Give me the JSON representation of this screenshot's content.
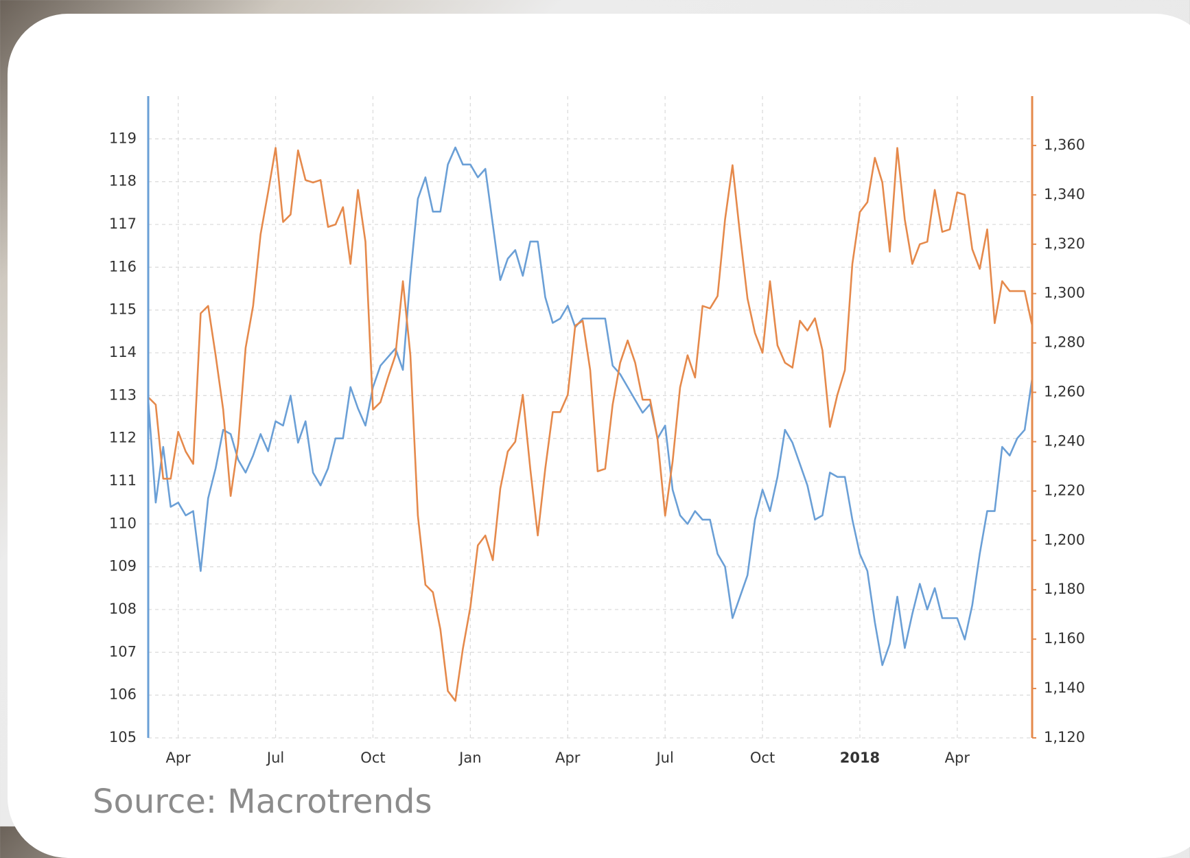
{
  "chart_data": {
    "type": "line",
    "categories": [
      null,
      null,
      null,
      null,
      "Apr",
      null,
      null,
      null,
      null,
      null,
      null,
      null,
      null,
      null,
      null,
      null,
      null,
      "Jul",
      null,
      null,
      null,
      null,
      null,
      null,
      null,
      null,
      null,
      null,
      null,
      null,
      "Oct",
      null,
      null,
      null,
      null,
      null,
      null,
      null,
      null,
      null,
      null,
      null,
      null,
      "Jan",
      null,
      null,
      null,
      null,
      null,
      null,
      null,
      null,
      null,
      null,
      null,
      null,
      "Apr",
      null,
      null,
      null,
      null,
      null,
      null,
      null,
      null,
      null,
      null,
      null,
      null,
      "Jul",
      null,
      null,
      null,
      null,
      null,
      null,
      null,
      null,
      null,
      null,
      null,
      null,
      "Oct",
      null,
      null,
      null,
      null,
      null,
      null,
      null,
      null,
      null,
      null,
      null,
      null,
      "2018",
      null,
      null,
      null,
      null,
      null,
      null,
      null,
      null,
      null,
      null,
      null,
      null,
      "Apr",
      null,
      null,
      null,
      null,
      null,
      null,
      null,
      null,
      null,
      null
    ],
    "series": [
      {
        "color": "#6a9fd6",
        "axis": "y",
        "values": [
          112.9,
          110.5,
          111.8,
          110.4,
          110.5,
          110.2,
          110.3,
          108.9,
          110.6,
          111.3,
          112.2,
          112.1,
          111.5,
          111.2,
          111.6,
          112.1,
          111.7,
          112.4,
          112.3,
          113.0,
          111.9,
          112.4,
          111.2,
          110.9,
          111.3,
          112.0,
          112.0,
          113.2,
          112.7,
          112.3,
          113.2,
          113.7,
          113.9,
          114.1,
          113.6,
          115.8,
          117.6,
          118.1,
          117.3,
          117.3,
          118.4,
          118.8,
          118.4,
          118.4,
          118.1,
          118.3,
          117.0,
          115.7,
          116.2,
          116.4,
          115.8,
          116.6,
          116.6,
          115.3,
          114.7,
          114.8,
          115.1,
          114.6,
          114.8,
          114.8,
          114.8,
          114.8,
          113.7,
          113.5,
          113.2,
          112.9,
          112.6,
          112.8,
          112.0,
          112.3,
          110.8,
          110.2,
          110.0,
          110.3,
          110.1,
          110.1,
          109.3,
          109.0,
          107.8,
          108.3,
          108.8,
          110.1,
          110.8,
          110.3,
          111.1,
          112.2,
          111.9,
          111.4,
          110.9,
          110.1,
          110.2,
          111.2,
          111.1,
          111.1,
          110.1,
          109.3,
          108.9,
          107.7,
          106.7,
          107.2,
          108.3,
          107.1,
          107.9,
          108.6,
          108.0,
          108.5,
          107.8,
          107.8,
          107.8,
          107.3,
          108.1,
          109.3,
          110.3,
          110.3,
          111.8,
          111.6,
          112.0,
          112.2,
          113.4
        ]
      },
      {
        "color": "#e5894b",
        "axis": "y2",
        "values": [
          1258,
          1255,
          1225,
          1225,
          1244,
          1236,
          1231,
          1292,
          1295,
          1275,
          1253,
          1218,
          1239,
          1278,
          1295,
          1324,
          1341,
          1359,
          1329,
          1332,
          1358,
          1346,
          1345,
          1346,
          1327,
          1328,
          1335,
          1312,
          1342,
          1321,
          1253,
          1256,
          1266,
          1275,
          1305,
          1275,
          1210,
          1182,
          1179,
          1164,
          1139,
          1135,
          1156,
          1173,
          1198,
          1202,
          1192,
          1221,
          1236,
          1240,
          1259,
          1229,
          1202,
          1229,
          1252,
          1252,
          1259,
          1287,
          1289,
          1269,
          1228,
          1229,
          1255,
          1272,
          1281,
          1272,
          1257,
          1257,
          1241,
          1210,
          1232,
          1262,
          1275,
          1266,
          1295,
          1294,
          1299,
          1330,
          1352,
          1324,
          1298,
          1284,
          1276,
          1305,
          1279,
          1272,
          1270,
          1289,
          1285,
          1290,
          1277,
          1246,
          1259,
          1269,
          1312,
          1333,
          1337,
          1355,
          1345,
          1317,
          1359,
          1330,
          1312,
          1320,
          1321,
          1342,
          1325,
          1326,
          1341,
          1340,
          1318,
          1310,
          1326,
          1288,
          1305,
          1301,
          1301,
          1301,
          1287
        ]
      }
    ],
    "ylim": [
      105,
      120
    ],
    "yticks": [
      105,
      106,
      107,
      108,
      109,
      110,
      111,
      112,
      113,
      114,
      115,
      116,
      117,
      118,
      119
    ],
    "y2lim": [
      1120,
      1380
    ],
    "y2ticks": [
      {
        "value": 1120,
        "label": "1,120"
      },
      {
        "value": 1140,
        "label": "1,140"
      },
      {
        "value": 1160,
        "label": "1,160"
      },
      {
        "value": 1180,
        "label": "1,180"
      },
      {
        "value": 1200,
        "label": "1,200"
      },
      {
        "value": 1220,
        "label": "1,220"
      },
      {
        "value": 1240,
        "label": "1,240"
      },
      {
        "value": 1260,
        "label": "1,260"
      },
      {
        "value": 1280,
        "label": "1,280"
      },
      {
        "value": 1300,
        "label": "1,300"
      },
      {
        "value": 1320,
        "label": "1,320"
      },
      {
        "value": 1340,
        "label": "1,340"
      },
      {
        "value": 1360,
        "label": "1,360"
      }
    ],
    "grid": true
  },
  "source": "Source: Macrotrends"
}
